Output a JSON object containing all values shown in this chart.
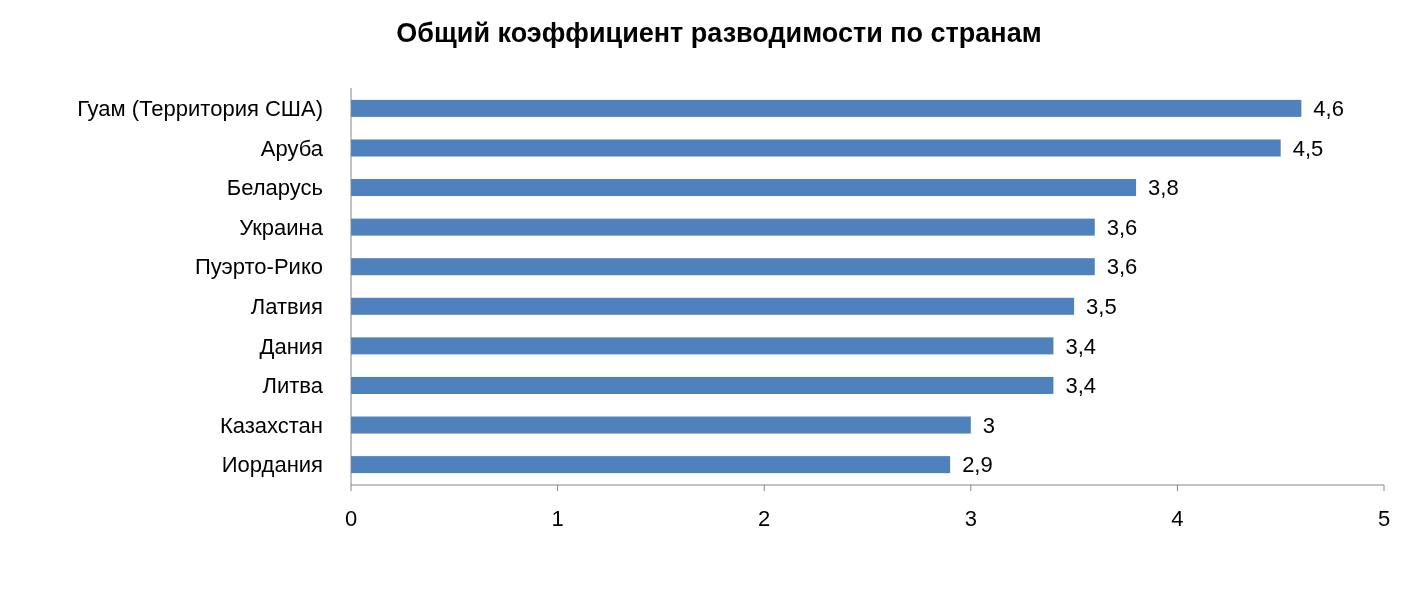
{
  "chart_data": {
    "type": "bar",
    "orientation": "horizontal",
    "title": "Общий коэффициент разводимости по странам",
    "categories": [
      "Гуам (Территория США)",
      "Аруба",
      "Беларусь",
      "Украина",
      "Пуэрто-Рико",
      "Латвия",
      "Дания",
      "Литва",
      "Казахстан",
      "Иордания"
    ],
    "values": [
      4.6,
      4.5,
      3.8,
      3.6,
      3.6,
      3.5,
      3.4,
      3.4,
      3,
      2.9
    ],
    "value_labels": [
      "4,6",
      "4,5",
      "3,8",
      "3,6",
      "3,6",
      "3,5",
      "3,4",
      "3,4",
      "3",
      "2,9"
    ],
    "color": "#4f81bd",
    "xlim": [
      0,
      5
    ],
    "xticks": [
      0,
      1,
      2,
      3,
      4,
      5
    ],
    "grid": false
  }
}
